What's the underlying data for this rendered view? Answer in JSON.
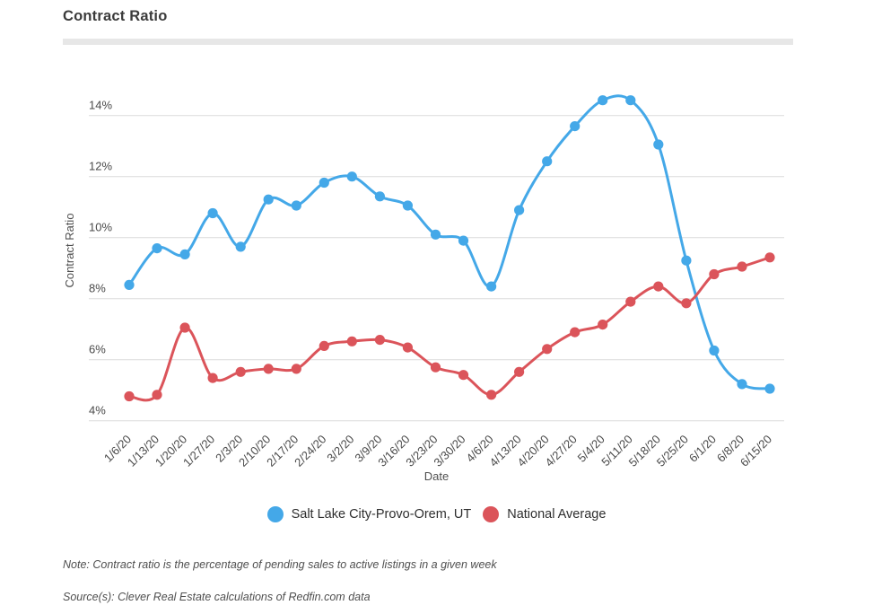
{
  "title": "Contract Ratio",
  "note": "Note: Contract ratio is the percentage of pending sales to active listings in a given week",
  "source": "Source(s): Clever Real Estate calculations of Redfin.com data",
  "colors": {
    "slc_blue": "#44A8E8",
    "national_red": "#DB545A",
    "gridline": "#dcdcdc",
    "tick_label": "#4a4a4a",
    "axis_title": "#4f4f4f",
    "divider": "#e7e7e7"
  },
  "chart_data": {
    "type": "line",
    "title": "Contract Ratio",
    "xlabel": "Date",
    "ylabel": "Contract Ratio",
    "grid": true,
    "legend_position": "bottom",
    "ylim": [
      4,
      15
    ],
    "y_tick_labels": [
      "4%",
      "6%",
      "8%",
      "10%",
      "12%",
      "14%"
    ],
    "y_tick_values": [
      4,
      6,
      8,
      10,
      12,
      14
    ],
    "x": [
      "1/6/20",
      "1/13/20",
      "1/20/20",
      "1/27/20",
      "2/3/20",
      "2/10/20",
      "2/17/20",
      "2/24/20",
      "3/2/20",
      "3/9/20",
      "3/16/20",
      "3/23/20",
      "3/30/20",
      "4/6/20",
      "4/13/20",
      "4/20/20",
      "4/27/20",
      "5/4/20",
      "5/11/20",
      "5/18/20",
      "5/25/20",
      "6/1/20",
      "6/8/20",
      "6/15/20"
    ],
    "series": [
      {
        "name": "Salt Lake City-Provo-Orem, UT",
        "color": "#44A8E8",
        "values": [
          8.45,
          9.65,
          9.45,
          10.8,
          9.7,
          11.25,
          11.05,
          11.8,
          12.0,
          11.35,
          11.05,
          10.1,
          9.9,
          8.4,
          10.9,
          12.5,
          13.65,
          14.5,
          14.5,
          13.05,
          9.25,
          6.3,
          5.2,
          5.05
        ]
      },
      {
        "name": "National Average",
        "color": "#DB545A",
        "values": [
          4.8,
          4.85,
          7.05,
          5.4,
          5.6,
          5.7,
          5.7,
          6.45,
          6.6,
          6.65,
          6.4,
          5.75,
          5.5,
          4.85,
          5.6,
          6.35,
          6.9,
          7.15,
          7.9,
          8.4,
          7.85,
          8.8,
          9.05,
          9.35
        ]
      }
    ]
  }
}
